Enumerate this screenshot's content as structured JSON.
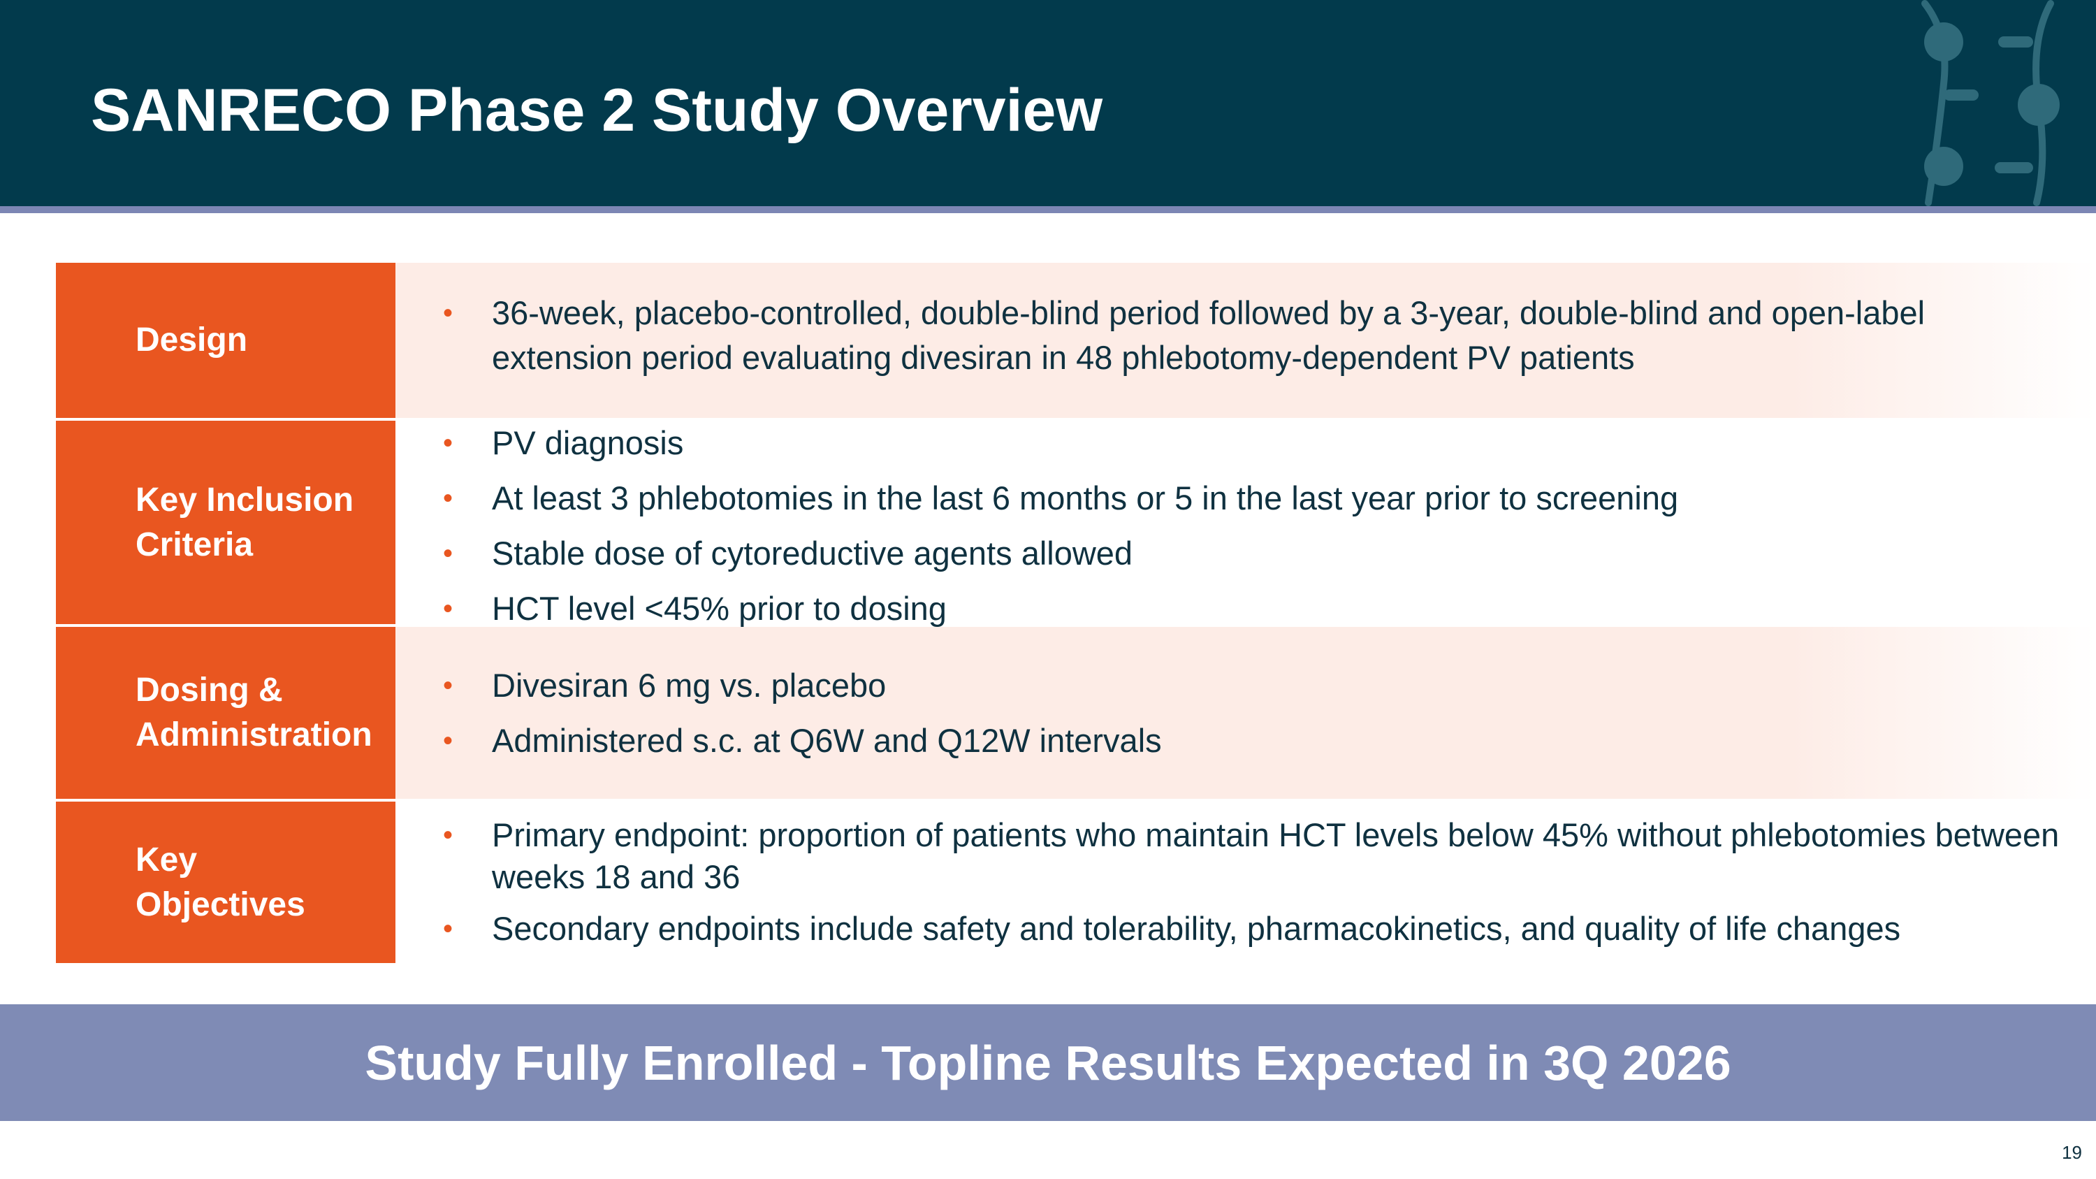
{
  "header": {
    "title": "SANRECO Phase 2 Study Overview",
    "logo_icon": "molecule-logo-icon"
  },
  "rows": [
    {
      "label": "Design",
      "bullets": [
        "36-week, placebo-controlled, double-blind period followed by a 3-year, double-blind and open-label extension period evaluating divesiran in 48 phlebotomy-dependent PV patients"
      ]
    },
    {
      "label": "Key Inclusion\nCriteria",
      "bullets": [
        "PV diagnosis",
        "At least 3 phlebotomies in the last 6 months or 5 in the last year prior to screening",
        "Stable dose of cytoreductive agents allowed",
        "HCT level <45% prior to dosing"
      ]
    },
    {
      "label": "Dosing &\nAdministration",
      "bullets": [
        "Divesiran 6 mg vs. placebo",
        "Administered s.c. at Q6W and Q12W intervals"
      ]
    },
    {
      "label": "Key\nObjectives",
      "bullets": [
        "Primary endpoint: proportion of patients who maintain HCT levels below 45% without phlebotomies between weeks 18 and 36",
        "Secondary endpoints include safety and tolerability, pharmacokinetics, and quality of life changes"
      ]
    }
  ],
  "bullet_glyph": "•",
  "banner": {
    "text": "Study Fully Enrolled - Topline Results Expected in 3Q 2026"
  },
  "footer": {
    "page_number": "19"
  },
  "colors": {
    "header_bg": "#023a4c",
    "accent_orange": "#e95620",
    "banner_bg": "#7f8bb5",
    "row_tint": "#fdece6",
    "body_text": "#0f3140"
  }
}
